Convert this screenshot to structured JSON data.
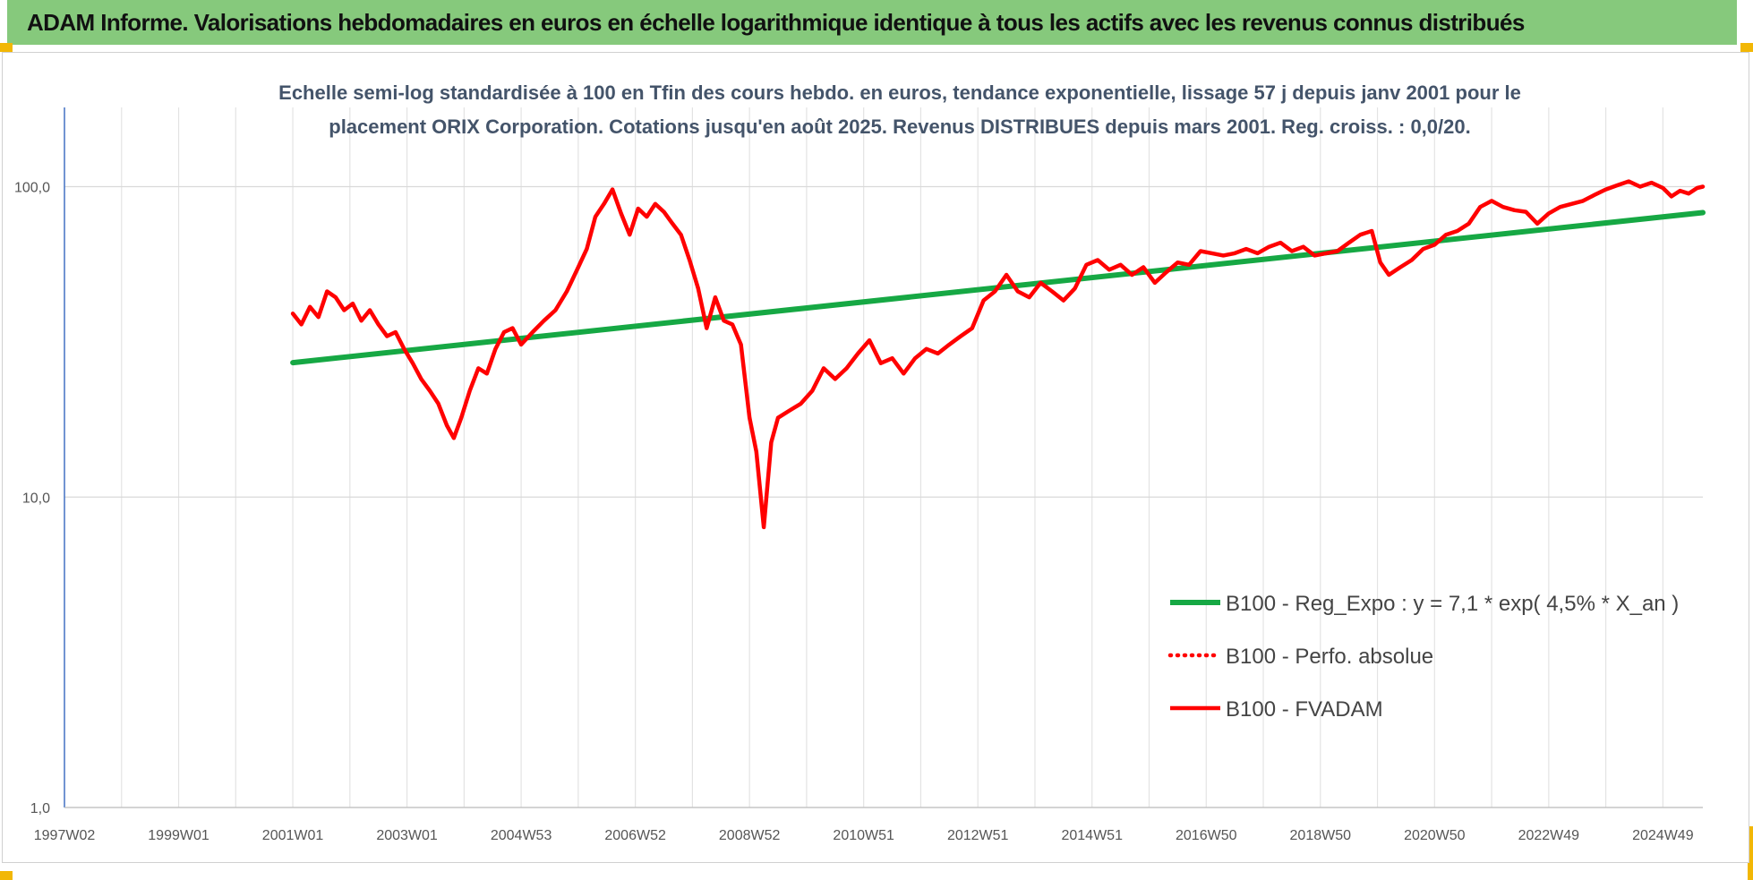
{
  "header": {
    "title": "ADAM Informe. Valorisations hebdomadaires en euros en échelle logarithmique identique à tous les actifs avec les revenus connus distribués"
  },
  "colors": {
    "header_bg": "#86c97c",
    "trend": "#16a844",
    "fvadam": "#ff0000",
    "perfo": "#ff0000",
    "axis": "#4472c4",
    "grid": "#e3e3e3"
  },
  "chart_data": {
    "type": "line",
    "subtitle_lines": [
      "Echelle semi-log standardisée à 100 en Tfin des cours hebdo. en euros, tendance exponentielle, lissage 57 j depuis janv 2001 pour le",
      "placement ORIX Corporation. Cotations jusqu'en août 2025.  Revenus DISTRIBUES depuis mars 2001.  Reg. croiss. : 0,0/20."
    ],
    "y_scale": "log",
    "ylim": [
      1,
      180
    ],
    "y_ticks": [
      {
        "value": 1,
        "label": "1,0"
      },
      {
        "value": 10,
        "label": "10,0"
      },
      {
        "value": 100,
        "label": "100,0"
      }
    ],
    "xlim": [
      1997.0,
      2025.7
    ],
    "x_ticks": [
      {
        "value": 1997.0,
        "label": "1997W02"
      },
      {
        "value": 1999.0,
        "label": "1999W01"
      },
      {
        "value": 2001.0,
        "label": "2001W01"
      },
      {
        "value": 2003.0,
        "label": "2003W01"
      },
      {
        "value": 2005.0,
        "label": "2004W53"
      },
      {
        "value": 2007.0,
        "label": "2006W52"
      },
      {
        "value": 2009.0,
        "label": "2008W52"
      },
      {
        "value": 2011.0,
        "label": "2010W51"
      },
      {
        "value": 2013.0,
        "label": "2012W51"
      },
      {
        "value": 2015.0,
        "label": "2014W51"
      },
      {
        "value": 2017.0,
        "label": "2016W50"
      },
      {
        "value": 2019.0,
        "label": "2018W50"
      },
      {
        "value": 2021.0,
        "label": "2020W50"
      },
      {
        "value": 2023.0,
        "label": "2022W49"
      },
      {
        "value": 2025.0,
        "label": "2024W49"
      }
    ],
    "grid": true,
    "legend_position": "right",
    "series": [
      {
        "name": "B100 - Reg_Expo : y = 7,1 * exp( 4,5% *  X_an )",
        "color": "#16a844",
        "style": "solid",
        "points": [
          [
            2001.0,
            27.1
          ],
          [
            2025.7,
            82.5
          ]
        ]
      },
      {
        "name": "B100 - Perfo. absolue",
        "color": "#ff0000",
        "style": "dotted",
        "points": []
      },
      {
        "name": "B100 - FVADAM",
        "color": "#ff0000",
        "style": "solid",
        "points": [
          [
            2001.0,
            39
          ],
          [
            2001.15,
            36
          ],
          [
            2001.3,
            41
          ],
          [
            2001.45,
            38
          ],
          [
            2001.6,
            46
          ],
          [
            2001.75,
            44
          ],
          [
            2001.9,
            40
          ],
          [
            2002.05,
            42
          ],
          [
            2002.2,
            37
          ],
          [
            2002.35,
            40
          ],
          [
            2002.5,
            36
          ],
          [
            2002.65,
            33
          ],
          [
            2002.8,
            34
          ],
          [
            2002.95,
            30
          ],
          [
            2003.1,
            27
          ],
          [
            2003.25,
            24
          ],
          [
            2003.4,
            22
          ],
          [
            2003.55,
            20
          ],
          [
            2003.7,
            17
          ],
          [
            2003.82,
            15.5
          ],
          [
            2003.95,
            18
          ],
          [
            2004.1,
            22
          ],
          [
            2004.25,
            26
          ],
          [
            2004.4,
            25
          ],
          [
            2004.55,
            30
          ],
          [
            2004.7,
            34
          ],
          [
            2004.85,
            35
          ],
          [
            2005.0,
            31
          ],
          [
            2005.2,
            34
          ],
          [
            2005.4,
            37
          ],
          [
            2005.6,
            40
          ],
          [
            2005.8,
            46
          ],
          [
            2006.0,
            55
          ],
          [
            2006.15,
            63
          ],
          [
            2006.3,
            80
          ],
          [
            2006.45,
            88
          ],
          [
            2006.6,
            98
          ],
          [
            2006.75,
            82
          ],
          [
            2006.9,
            70
          ],
          [
            2007.05,
            85
          ],
          [
            2007.2,
            80
          ],
          [
            2007.35,
            88
          ],
          [
            2007.5,
            83
          ],
          [
            2007.65,
            76
          ],
          [
            2007.8,
            70
          ],
          [
            2007.95,
            58
          ],
          [
            2008.1,
            47
          ],
          [
            2008.25,
            35
          ],
          [
            2008.4,
            44
          ],
          [
            2008.55,
            37
          ],
          [
            2008.7,
            36
          ],
          [
            2008.85,
            31
          ],
          [
            2009.0,
            18
          ],
          [
            2009.12,
            14
          ],
          [
            2009.25,
            8
          ],
          [
            2009.38,
            15
          ],
          [
            2009.5,
            18
          ],
          [
            2009.7,
            19
          ],
          [
            2009.9,
            20
          ],
          [
            2010.1,
            22
          ],
          [
            2010.3,
            26
          ],
          [
            2010.5,
            24
          ],
          [
            2010.7,
            26
          ],
          [
            2010.9,
            29
          ],
          [
            2011.1,
            32
          ],
          [
            2011.3,
            27
          ],
          [
            2011.5,
            28
          ],
          [
            2011.7,
            25
          ],
          [
            2011.9,
            28
          ],
          [
            2012.1,
            30
          ],
          [
            2012.3,
            29
          ],
          [
            2012.5,
            31
          ],
          [
            2012.7,
            33
          ],
          [
            2012.9,
            35
          ],
          [
            2013.1,
            43
          ],
          [
            2013.3,
            46
          ],
          [
            2013.5,
            52
          ],
          [
            2013.7,
            46
          ],
          [
            2013.9,
            44
          ],
          [
            2014.1,
            49
          ],
          [
            2014.3,
            46
          ],
          [
            2014.5,
            43
          ],
          [
            2014.7,
            47
          ],
          [
            2014.9,
            56
          ],
          [
            2015.1,
            58
          ],
          [
            2015.3,
            54
          ],
          [
            2015.5,
            56
          ],
          [
            2015.7,
            52
          ],
          [
            2015.9,
            55
          ],
          [
            2016.1,
            49
          ],
          [
            2016.3,
            53
          ],
          [
            2016.5,
            57
          ],
          [
            2016.7,
            56
          ],
          [
            2016.9,
            62
          ],
          [
            2017.1,
            61
          ],
          [
            2017.3,
            60
          ],
          [
            2017.5,
            61
          ],
          [
            2017.7,
            63
          ],
          [
            2017.9,
            61
          ],
          [
            2018.1,
            64
          ],
          [
            2018.3,
            66
          ],
          [
            2018.5,
            62
          ],
          [
            2018.7,
            64
          ],
          [
            2018.9,
            60
          ],
          [
            2019.1,
            61
          ],
          [
            2019.3,
            62
          ],
          [
            2019.5,
            66
          ],
          [
            2019.7,
            70
          ],
          [
            2019.9,
            72
          ],
          [
            2020.05,
            57
          ],
          [
            2020.2,
            52
          ],
          [
            2020.4,
            55
          ],
          [
            2020.6,
            58
          ],
          [
            2020.8,
            63
          ],
          [
            2021.0,
            65
          ],
          [
            2021.2,
            70
          ],
          [
            2021.4,
            72
          ],
          [
            2021.6,
            76
          ],
          [
            2021.8,
            86
          ],
          [
            2022.0,
            90
          ],
          [
            2022.2,
            86
          ],
          [
            2022.4,
            84
          ],
          [
            2022.6,
            83
          ],
          [
            2022.8,
            76
          ],
          [
            2023.0,
            82
          ],
          [
            2023.2,
            86
          ],
          [
            2023.4,
            88
          ],
          [
            2023.6,
            90
          ],
          [
            2023.8,
            94
          ],
          [
            2024.0,
            98
          ],
          [
            2024.2,
            101
          ],
          [
            2024.4,
            104
          ],
          [
            2024.6,
            100
          ],
          [
            2024.8,
            103
          ],
          [
            2025.0,
            99
          ],
          [
            2025.15,
            93
          ],
          [
            2025.3,
            97
          ],
          [
            2025.45,
            95
          ],
          [
            2025.6,
            99
          ],
          [
            2025.7,
            100
          ]
        ]
      }
    ]
  }
}
